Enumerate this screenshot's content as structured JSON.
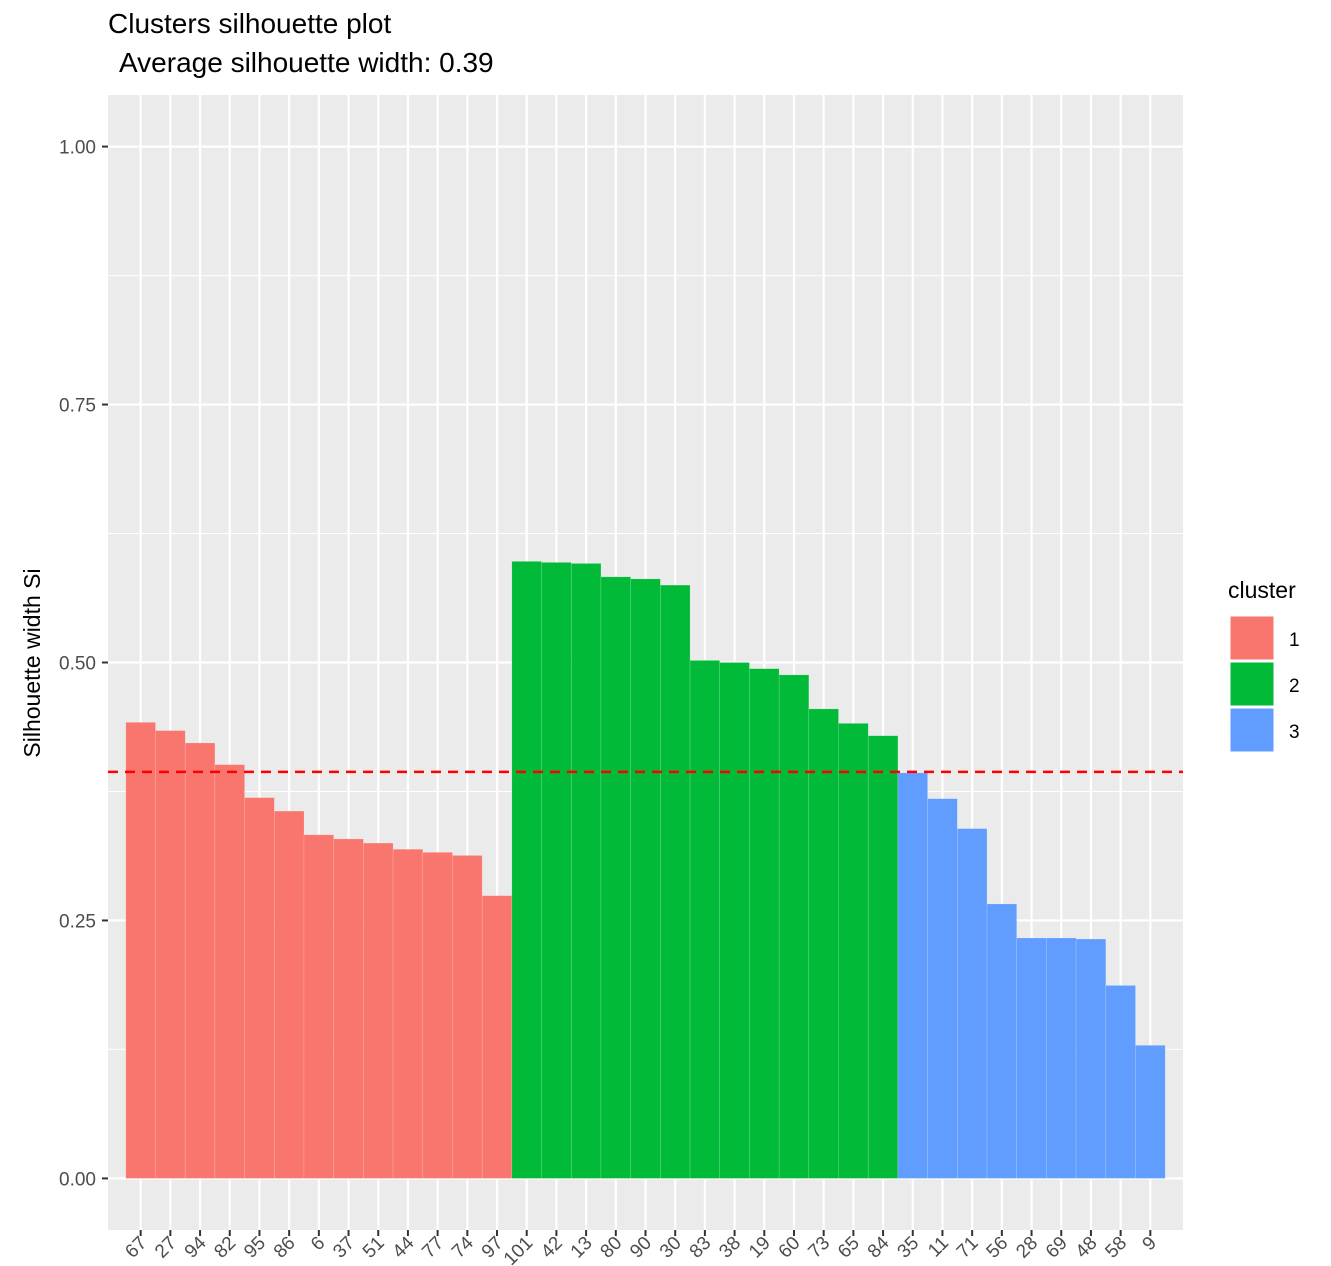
{
  "chart_data": {
    "type": "bar",
    "title": "Clusters silhouette plot",
    "subtitle": "Average silhouette width: 0.39",
    "y_label": "Silhouette width Si",
    "legend_title": "cluster",
    "categories": [
      "67",
      "27",
      "94",
      "82",
      "95",
      "86",
      "6",
      "37",
      "51",
      "44",
      "77",
      "74",
      "97",
      "101",
      "42",
      "13",
      "80",
      "90",
      "30",
      "83",
      "38",
      "19",
      "60",
      "73",
      "65",
      "84",
      "35",
      "11",
      "71",
      "56",
      "28",
      "69",
      "48",
      "58",
      "9"
    ],
    "series": [
      {
        "name": "1",
        "color": "#F8766D",
        "values": [
          0.442,
          0.434,
          0.422,
          0.401,
          0.369,
          0.356,
          0.333,
          0.329,
          0.325,
          0.319,
          0.316,
          0.313,
          0.274,
          null,
          null,
          null,
          null,
          null,
          null,
          null,
          null,
          null,
          null,
          null,
          null,
          null,
          null,
          null,
          null,
          null,
          null,
          null,
          null,
          null,
          null
        ]
      },
      {
        "name": "2",
        "color": "#00BA38",
        "values": [
          null,
          null,
          null,
          null,
          null,
          null,
          null,
          null,
          null,
          null,
          null,
          null,
          null,
          0.598,
          0.597,
          0.596,
          0.583,
          0.581,
          0.575,
          0.502,
          0.5,
          0.494,
          0.488,
          0.455,
          0.441,
          0.429,
          null,
          null,
          null,
          null,
          null,
          null,
          null,
          null,
          null
        ]
      },
      {
        "name": "3",
        "color": "#619CFF",
        "values": [
          null,
          null,
          null,
          null,
          null,
          null,
          null,
          null,
          null,
          null,
          null,
          null,
          null,
          null,
          null,
          null,
          null,
          null,
          null,
          null,
          null,
          null,
          null,
          null,
          null,
          null,
          0.393,
          0.368,
          0.339,
          0.266,
          0.233,
          0.233,
          0.232,
          0.187,
          0.129
        ]
      }
    ],
    "mean_line": {
      "value": 0.394,
      "color": "#FF0000"
    },
    "ylim": [
      -0.05,
      1.05
    ],
    "yticks": [
      {
        "value": 0,
        "label": "0.00"
      },
      {
        "value": 0.25,
        "label": "0.25"
      },
      {
        "value": 0.5,
        "label": "0.50"
      },
      {
        "value": 0.75,
        "label": "0.75"
      },
      {
        "value": 1,
        "label": "1.00"
      }
    ],
    "grid": true,
    "legend_position": "right"
  }
}
